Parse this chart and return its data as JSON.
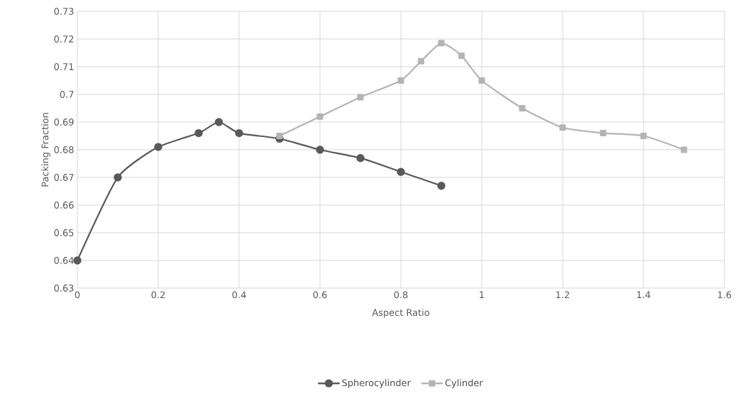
{
  "chart_data": {
    "type": "line",
    "xlabel": "Aspect Ratio",
    "ylabel": "Packing Fraction",
    "xlim": [
      0,
      1.6
    ],
    "xticks": [
      0,
      0.2,
      0.4,
      0.6,
      0.8,
      1,
      1.2,
      1.4,
      1.6
    ],
    "ylim": [
      0.63,
      0.73
    ],
    "yticks": [
      0.63,
      0.64,
      0.65,
      0.66,
      0.67,
      0.68,
      0.69,
      0.7,
      0.71,
      0.72,
      0.73
    ],
    "grid": true,
    "legend": "bottom",
    "line_style": "solid",
    "series": [
      {
        "name": "Spherocylinder",
        "color": "#595959",
        "marker": "circle",
        "x": [
          0,
          0.1,
          0.2,
          0.3,
          0.35,
          0.4,
          0.5,
          0.6,
          0.7,
          0.8,
          0.9
        ],
        "values": [
          0.64,
          0.67,
          0.681,
          0.686,
          0.69,
          0.686,
          0.684,
          0.68,
          0.677,
          0.672,
          0.667
        ]
      },
      {
        "name": "Cylinder",
        "color": "#b4b4b4",
        "marker": "square",
        "x": [
          0.5,
          0.6,
          0.7,
          0.8,
          0.85,
          0.9,
          0.95,
          1.0,
          1.1,
          1.2,
          1.3,
          1.4,
          1.5
        ],
        "values": [
          0.685,
          0.692,
          0.699,
          0.705,
          0.712,
          0.7185,
          0.714,
          0.705,
          0.695,
          0.688,
          0.686,
          0.685,
          0.68
        ]
      }
    ]
  }
}
